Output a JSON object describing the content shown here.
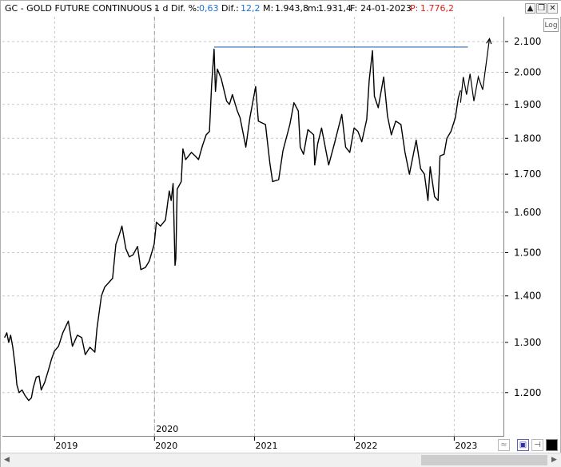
{
  "header": {
    "symbol": "GC - GOLD FUTURE CONTINUOUS -",
    "timeframe": "1 d",
    "dif_pct_label": "Dif. %:",
    "dif_pct_value": "0,63",
    "dif_label": "Dif.:",
    "dif_value": "12,2",
    "max_label": "M:",
    "max_value": "1.943,8",
    "min_label": "m:",
    "min_value": "1.931,4",
    "date_label": "F:",
    "date_value": "24-01-2023",
    "p_label": "P:",
    "p_value": "1.776,2"
  },
  "window_controls": {
    "up_icon": "chevron-up-icon",
    "restore_icon": "restore-icon",
    "close_icon": "close-icon"
  },
  "log_button": "Log",
  "chart_data": {
    "type": "line",
    "series": [
      {
        "values": [
          [
            "2018-07-02",
            1310
          ],
          [
            "2018-07-10",
            1320
          ],
          [
            "2018-07-17",
            1300
          ],
          [
            "2018-07-24",
            1315
          ],
          [
            "2018-08-01",
            1290
          ],
          [
            "2018-08-10",
            1250
          ],
          [
            "2018-08-16",
            1215
          ],
          [
            "2018-08-24",
            1200
          ],
          [
            "2018-09-04",
            1205
          ],
          [
            "2018-09-14",
            1195
          ],
          [
            "2018-09-28",
            1185
          ],
          [
            "2018-10-08",
            1190
          ],
          [
            "2018-10-15",
            1210
          ],
          [
            "2018-10-26",
            1230
          ],
          [
            "2018-11-05",
            1232
          ],
          [
            "2018-11-13",
            1205
          ],
          [
            "2018-11-26",
            1220
          ],
          [
            "2018-12-10",
            1245
          ],
          [
            "2018-12-20",
            1265
          ],
          [
            "2018-12-31",
            1282
          ],
          [
            "2019-01-15",
            1292
          ],
          [
            "2019-01-31",
            1320
          ],
          [
            "2019-02-20",
            1345
          ],
          [
            "2019-03-07",
            1292
          ],
          [
            "2019-03-25",
            1315
          ],
          [
            "2019-04-10",
            1310
          ],
          [
            "2019-04-23",
            1275
          ],
          [
            "2019-05-10",
            1290
          ],
          [
            "2019-05-28",
            1280
          ],
          [
            "2019-06-05",
            1330
          ],
          [
            "2019-06-21",
            1400
          ],
          [
            "2019-07-03",
            1420
          ],
          [
            "2019-07-18",
            1430
          ],
          [
            "2019-08-01",
            1440
          ],
          [
            "2019-08-13",
            1520
          ],
          [
            "2019-08-26",
            1545
          ],
          [
            "2019-09-04",
            1565
          ],
          [
            "2019-09-18",
            1510
          ],
          [
            "2019-10-01",
            1490
          ],
          [
            "2019-10-15",
            1495
          ],
          [
            "2019-10-31",
            1515
          ],
          [
            "2019-11-12",
            1460
          ],
          [
            "2019-11-29",
            1465
          ],
          [
            "2019-12-13",
            1480
          ],
          [
            "2019-12-31",
            1520
          ],
          [
            "2020-01-08",
            1575
          ],
          [
            "2020-01-23",
            1565
          ],
          [
            "2020-02-10",
            1580
          ],
          [
            "2020-02-24",
            1655
          ],
          [
            "2020-03-02",
            1630
          ],
          [
            "2020-03-09",
            1675
          ],
          [
            "2020-03-16",
            1470
          ],
          [
            "2020-03-19",
            1485
          ],
          [
            "2020-03-24",
            1660
          ],
          [
            "2020-04-08",
            1680
          ],
          [
            "2020-04-14",
            1770
          ],
          [
            "2020-04-24",
            1740
          ],
          [
            "2020-05-15",
            1760
          ],
          [
            "2020-05-29",
            1750
          ],
          [
            "2020-06-10",
            1740
          ],
          [
            "2020-06-25",
            1780
          ],
          [
            "2020-07-08",
            1810
          ],
          [
            "2020-07-20",
            1820
          ],
          [
            "2020-07-28",
            1960
          ],
          [
            "2020-08-06",
            2075
          ],
          [
            "2020-08-11",
            1940
          ],
          [
            "2020-08-18",
            2010
          ],
          [
            "2020-09-01",
            1980
          ],
          [
            "2020-09-21",
            1910
          ],
          [
            "2020-10-01",
            1900
          ],
          [
            "2020-10-12",
            1930
          ],
          [
            "2020-10-30",
            1880
          ],
          [
            "2020-11-09",
            1860
          ],
          [
            "2020-11-24",
            1800
          ],
          [
            "2020-11-30",
            1775
          ],
          [
            "2020-12-15",
            1860
          ],
          [
            "2021-01-05",
            1955
          ],
          [
            "2021-01-15",
            1850
          ],
          [
            "2021-02-10",
            1840
          ],
          [
            "2021-02-26",
            1730
          ],
          [
            "2021-03-08",
            1680
          ],
          [
            "2021-03-30",
            1685
          ],
          [
            "2021-04-15",
            1765
          ],
          [
            "2021-05-10",
            1840
          ],
          [
            "2021-05-25",
            1905
          ],
          [
            "2021-06-10",
            1880
          ],
          [
            "2021-06-17",
            1775
          ],
          [
            "2021-06-29",
            1755
          ],
          [
            "2021-07-15",
            1825
          ],
          [
            "2021-08-05",
            1810
          ],
          [
            "2021-08-09",
            1725
          ],
          [
            "2021-08-20",
            1785
          ],
          [
            "2021-09-03",
            1830
          ],
          [
            "2021-09-29",
            1725
          ],
          [
            "2021-10-20",
            1785
          ],
          [
            "2021-11-16",
            1870
          ],
          [
            "2021-11-30",
            1775
          ],
          [
            "2021-12-15",
            1760
          ],
          [
            "2021-12-31",
            1830
          ],
          [
            "2022-01-14",
            1820
          ],
          [
            "2022-01-28",
            1790
          ],
          [
            "2022-02-15",
            1855
          ],
          [
            "2022-02-24",
            1975
          ],
          [
            "2022-03-08",
            2070
          ],
          [
            "2022-03-15",
            1925
          ],
          [
            "2022-03-29",
            1890
          ],
          [
            "2022-04-18",
            1985
          ],
          [
            "2022-05-02",
            1865
          ],
          [
            "2022-05-16",
            1810
          ],
          [
            "2022-06-01",
            1850
          ],
          [
            "2022-06-20",
            1840
          ],
          [
            "2022-07-05",
            1760
          ],
          [
            "2022-07-21",
            1700
          ],
          [
            "2022-08-15",
            1795
          ],
          [
            "2022-08-31",
            1715
          ],
          [
            "2022-09-14",
            1700
          ],
          [
            "2022-09-27",
            1630
          ],
          [
            "2022-10-05",
            1720
          ],
          [
            "2022-10-21",
            1640
          ],
          [
            "2022-11-03",
            1630
          ],
          [
            "2022-11-10",
            1750
          ],
          [
            "2022-11-25",
            1755
          ],
          [
            "2022-12-05",
            1800
          ],
          [
            "2022-12-20",
            1820
          ],
          [
            "2023-01-05",
            1860
          ],
          [
            "2023-01-16",
            1920
          ],
          [
            "2023-01-24",
            1943
          ]
        ]
      }
    ],
    "resistance_line": {
      "start": "2020-08-06",
      "end": "2023-02-20",
      "value": 2082
    },
    "projection": [
      [
        "2023-01-24",
        1905
      ],
      [
        "2023-02-03",
        1985
      ],
      [
        "2023-02-15",
        1930
      ],
      [
        "2023-02-28",
        1995
      ],
      [
        "2023-03-14",
        1910
      ],
      [
        "2023-03-30",
        1985
      ],
      [
        "2023-04-15",
        1945
      ],
      [
        "2023-05-10",
        2110
      ]
    ],
    "x_axis": {
      "range": [
        "2018-06-24",
        "2023-06-30"
      ],
      "tick_labels": [
        "2019",
        "2020",
        "2021",
        "2022",
        "2023"
      ],
      "tick_dates": [
        "2019-01-01",
        "2020-01-01",
        "2021-01-01",
        "2022-01-01",
        "2023-01-01"
      ]
    },
    "y_axis": {
      "scale": "log",
      "range": [
        1120,
        2185
      ],
      "ticks": [
        1200,
        1300,
        1400,
        1500,
        1600,
        1700,
        1800,
        1900,
        2000,
        2100
      ],
      "tick_labels": [
        "1.200",
        "1.300",
        "1.400",
        "1.500",
        "1.600",
        "1.700",
        "1.800",
        "1.900",
        "2.000",
        "2.100"
      ]
    },
    "marker": {
      "date": "2020-01-01",
      "label": "2020"
    },
    "grid": true,
    "colors": {
      "price": "#000000",
      "resistance": "#2f6fb0",
      "grid": "#c8c8c8",
      "header_value": "#1e6fd9",
      "p_value": "#e0201a"
    }
  }
}
